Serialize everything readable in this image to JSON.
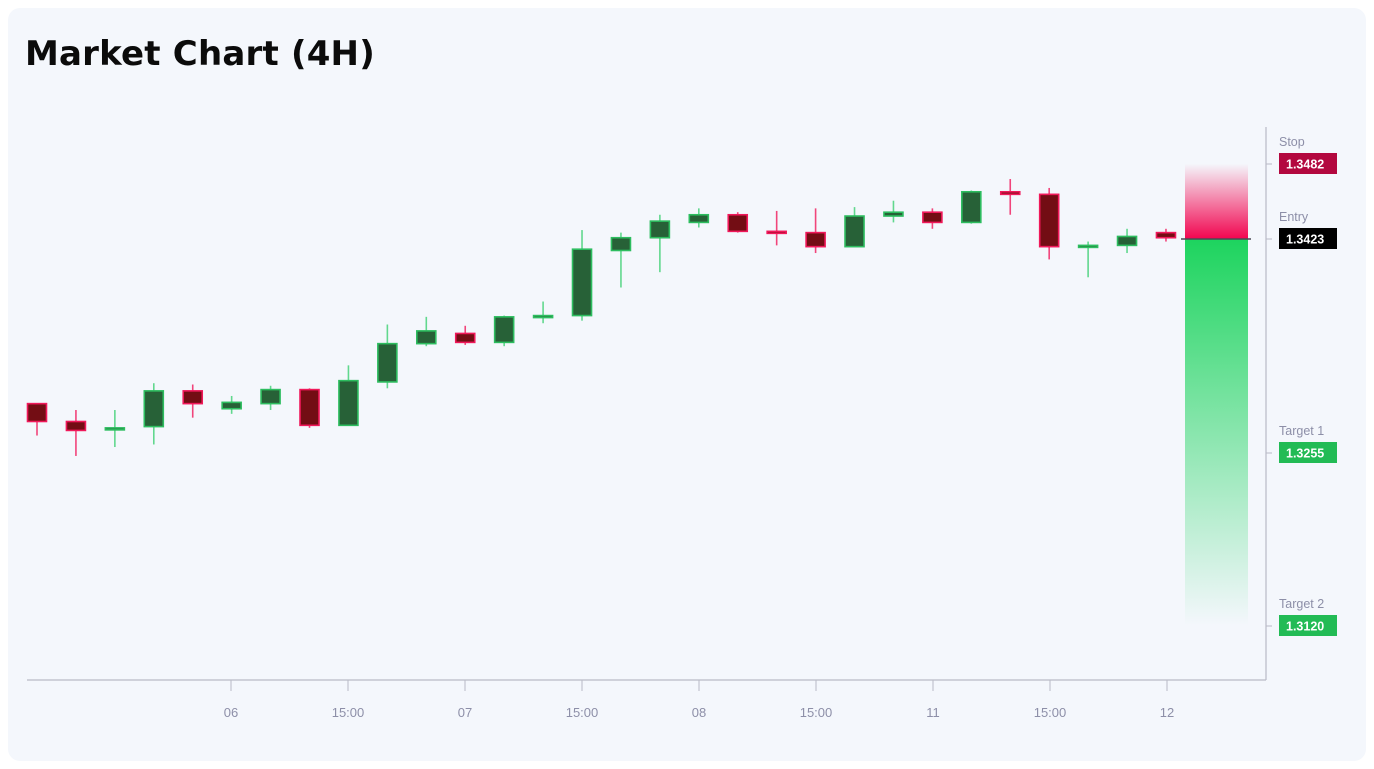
{
  "title": "Market Chart (4H)",
  "colors": {
    "background": "#f4f7fc",
    "bull_body": "#276137",
    "bull_border": "#2dbd5f",
    "bull_wick": "#3ccf72",
    "bear_body": "#730d14",
    "bear_border": "#f0185a",
    "bear_wick": "#f0185a",
    "stop_badge": "#b3083f",
    "entry_badge": "#000000",
    "target_badge": "#22bb55",
    "axis": "#b9bac6",
    "label_text": "#8d8fa8",
    "risk_zone": "#f2054f",
    "reward_zone": "#1dd45e"
  },
  "chart_data": {
    "type": "candlestick",
    "title": "Market Chart (4H)",
    "timeframe": "4H",
    "xlabel": "",
    "ylabel": "",
    "grid": false,
    "ylim": [
      1.3055,
      1.354
    ],
    "x_ticks": [
      {
        "label": "06",
        "index": 5
      },
      {
        "label": "15:00",
        "index": 8
      },
      {
        "label": "07",
        "index": 11
      },
      {
        "label": "15:00",
        "index": 14
      },
      {
        "label": "08",
        "index": 17
      },
      {
        "label": "15:00",
        "index": 20
      },
      {
        "label": "11",
        "index": 23
      },
      {
        "label": "15:00",
        "index": 26
      },
      {
        "label": "12",
        "index": 29
      }
    ],
    "candles": [
      {
        "o": 1.3294,
        "h": 1.3294,
        "l": 1.3269,
        "c": 1.328
      },
      {
        "o": 1.328,
        "h": 1.3289,
        "l": 1.3253,
        "c": 1.3273
      },
      {
        "o": 1.3274,
        "h": 1.3289,
        "l": 1.326,
        "c": 1.3275
      },
      {
        "o": 1.3276,
        "h": 1.331,
        "l": 1.3262,
        "c": 1.3304
      },
      {
        "o": 1.3304,
        "h": 1.3309,
        "l": 1.3283,
        "c": 1.3294
      },
      {
        "o": 1.329,
        "h": 1.33,
        "l": 1.3286,
        "c": 1.3295
      },
      {
        "o": 1.3294,
        "h": 1.3308,
        "l": 1.3289,
        "c": 1.3305
      },
      {
        "o": 1.3305,
        "h": 1.3306,
        "l": 1.3275,
        "c": 1.3277
      },
      {
        "o": 1.3277,
        "h": 1.3324,
        "l": 1.3277,
        "c": 1.3312
      },
      {
        "o": 1.3311,
        "h": 1.3356,
        "l": 1.3306,
        "c": 1.3341
      },
      {
        "o": 1.3341,
        "h": 1.3362,
        "l": 1.3339,
        "c": 1.3351
      },
      {
        "o": 1.3349,
        "h": 1.3355,
        "l": 1.334,
        "c": 1.3342
      },
      {
        "o": 1.3342,
        "h": 1.3363,
        "l": 1.3339,
        "c": 1.3362
      },
      {
        "o": 1.3362,
        "h": 1.3374,
        "l": 1.3357,
        "c": 1.3363
      },
      {
        "o": 1.3363,
        "h": 1.343,
        "l": 1.3359,
        "c": 1.3415
      },
      {
        "o": 1.3414,
        "h": 1.3428,
        "l": 1.3385,
        "c": 1.3424
      },
      {
        "o": 1.3424,
        "h": 1.3442,
        "l": 1.3397,
        "c": 1.3437
      },
      {
        "o": 1.3436,
        "h": 1.3447,
        "l": 1.3432,
        "c": 1.3442
      },
      {
        "o": 1.3442,
        "h": 1.3444,
        "l": 1.3428,
        "c": 1.3429
      },
      {
        "o": 1.3429,
        "h": 1.3445,
        "l": 1.3418,
        "c": 1.3428
      },
      {
        "o": 1.3428,
        "h": 1.3447,
        "l": 1.3412,
        "c": 1.3417
      },
      {
        "o": 1.3417,
        "h": 1.3448,
        "l": 1.3417,
        "c": 1.3441
      },
      {
        "o": 1.3441,
        "h": 1.3453,
        "l": 1.3436,
        "c": 1.3444
      },
      {
        "o": 1.3444,
        "h": 1.3447,
        "l": 1.3431,
        "c": 1.3436
      },
      {
        "o": 1.3436,
        "h": 1.3461,
        "l": 1.3435,
        "c": 1.346
      },
      {
        "o": 1.346,
        "h": 1.347,
        "l": 1.3442,
        "c": 1.3458
      },
      {
        "o": 1.3458,
        "h": 1.3463,
        "l": 1.3407,
        "c": 1.3417
      },
      {
        "o": 1.3417,
        "h": 1.3421,
        "l": 1.3393,
        "c": 1.3418
      },
      {
        "o": 1.3418,
        "h": 1.3431,
        "l": 1.3412,
        "c": 1.3425
      },
      {
        "o": 1.3428,
        "h": 1.3431,
        "l": 1.3421,
        "c": 1.3424
      }
    ],
    "levels": [
      {
        "name": "Stop",
        "value": "1.3482",
        "price": 1.3482,
        "type": "stop"
      },
      {
        "name": "Entry",
        "value": "1.3423",
        "price": 1.3423,
        "type": "entry"
      },
      {
        "name": "Target 1",
        "value": "1.3255",
        "price": 1.3255,
        "type": "target"
      },
      {
        "name": "Target 2",
        "value": "1.3120",
        "price": 1.312,
        "type": "target"
      }
    ],
    "position": {
      "direction": "short",
      "entry": 1.3423,
      "stop": 1.3482,
      "targets": [
        1.3255,
        1.312
      ]
    }
  }
}
